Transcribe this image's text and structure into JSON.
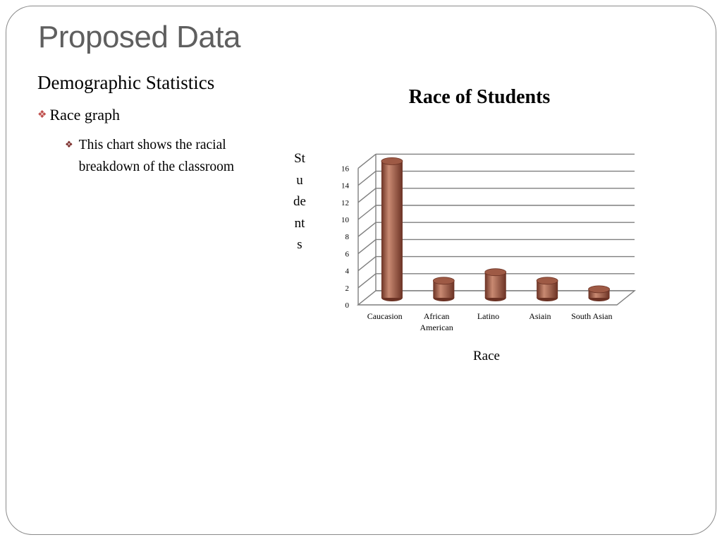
{
  "slide": {
    "title": "Proposed Data",
    "subheading": "Demographic Statistics",
    "bullet_level1": "Race graph",
    "bullet_level2": "This chart shows the racial breakdown of the classroom",
    "bullet_icon": "diamond-bullet-icon"
  },
  "colors": {
    "bar": "#9e5a45",
    "bar_dark": "#6b3224",
    "bar_light": "#c98a72",
    "bullet": "#c0504d",
    "title_text": "#5f5f5f"
  },
  "chart_data": {
    "type": "bar",
    "title": "Race of Students",
    "xlabel": "Race",
    "ylabel": "Students",
    "categories": [
      "Caucasion",
      "African American",
      "Latino",
      "Asiain",
      "South Asian"
    ],
    "category_lines": [
      [
        "Caucasion"
      ],
      [
        "African",
        "American"
      ],
      [
        "Latino"
      ],
      [
        "Asiain"
      ],
      [
        "South Asian"
      ]
    ],
    "values": [
      16,
      2,
      3,
      2,
      1
    ],
    "ylim": [
      0,
      16
    ],
    "yticks": [
      0,
      2,
      4,
      6,
      8,
      10,
      12,
      14,
      16
    ],
    "grid": true,
    "legend": false,
    "style": "3d-cylinder"
  }
}
